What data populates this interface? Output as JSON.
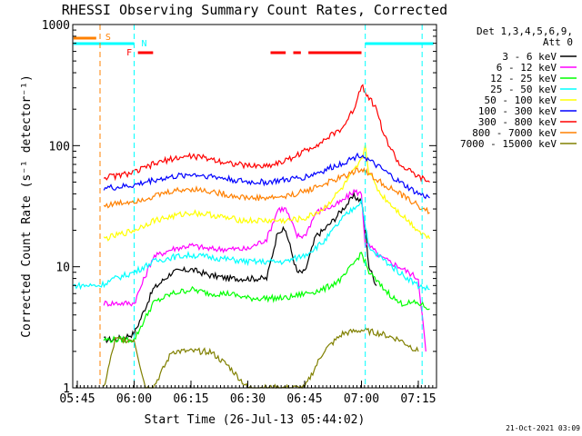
{
  "chart_data": {
    "type": "line",
    "title": "RHESSI Observing Summary Count Rates, Corrected",
    "xlabel": "Start Time (26-Jul-13 05:44:02)",
    "ylabel": "Corrected Count Rate (s⁻¹ detector⁻¹)",
    "yscale": "log",
    "ylim": [
      1,
      1000
    ],
    "xlim_minutes": [
      5.73,
      7.33
    ],
    "x_ticks": [
      "05:45",
      "06:00",
      "06:15",
      "06:30",
      "06:45",
      "07:00",
      "07:15"
    ],
    "y_ticks": [
      "1",
      "10",
      "100",
      "1000"
    ],
    "legend": {
      "header_1": "Det 1,3,4,5,6,9,",
      "header_2": "Att 0",
      "placement": "top-right outside"
    },
    "series": [
      {
        "name": "3 - 6 keV",
        "color": "#000000",
        "x": [
          "05:52",
          "05:55",
          "06:00",
          "06:05",
          "06:10",
          "06:15",
          "06:20",
          "06:25",
          "06:30",
          "06:35",
          "06:38",
          "06:40",
          "06:43",
          "06:45",
          "06:48",
          "06:50",
          "06:53",
          "06:55",
          "06:58",
          "07:00",
          "07:01",
          "07:02",
          "07:04"
        ],
        "values": [
          2.5,
          2.5,
          2.8,
          6.5,
          9,
          9.5,
          8.5,
          8,
          8,
          8,
          20,
          20,
          9,
          9,
          18,
          20,
          25,
          30,
          38,
          35,
          20,
          10,
          7
        ]
      },
      {
        "name": "6 - 12 keV",
        "color": "#ff00ff",
        "x": [
          "05:52",
          "05:55",
          "06:00",
          "06:05",
          "06:10",
          "06:15",
          "06:20",
          "06:25",
          "06:30",
          "06:35",
          "06:38",
          "06:40",
          "06:43",
          "06:45",
          "06:48",
          "06:50",
          "06:53",
          "06:55",
          "06:58",
          "07:00",
          "07:01",
          "07:02",
          "07:05",
          "07:10",
          "07:15",
          "07:17"
        ],
        "values": [
          5,
          5,
          5,
          12,
          14,
          15,
          14,
          14,
          14,
          17,
          30,
          30,
          18,
          18,
          28,
          30,
          32,
          35,
          42,
          40,
          15,
          15,
          12,
          10,
          8,
          2
        ]
      },
      {
        "name": "12 - 25 keV",
        "color": "#00ff00",
        "x": [
          "05:52",
          "05:55",
          "06:00",
          "06:05",
          "06:10",
          "06:15",
          "06:20",
          "06:25",
          "06:30",
          "06:35",
          "06:40",
          "06:45",
          "06:50",
          "06:55",
          "07:00",
          "07:02",
          "07:05",
          "07:10",
          "07:15",
          "07:18"
        ],
        "values": [
          2.5,
          2.5,
          2.5,
          5,
          6,
          6.5,
          6,
          6,
          5.5,
          5.5,
          5.5,
          6,
          6.5,
          8,
          13,
          9,
          7,
          5,
          5,
          4.5
        ]
      },
      {
        "name": "25 - 50 keV",
        "color": "#00ffff",
        "x": [
          "05:44",
          "05:51",
          "05:55",
          "06:00",
          "06:05",
          "06:10",
          "06:15",
          "06:20",
          "06:25",
          "06:30",
          "06:35",
          "06:40",
          "06:45",
          "06:50",
          "06:55",
          "07:00",
          "07:02",
          "07:05",
          "07:10",
          "07:15",
          "07:18"
        ],
        "values": [
          7,
          7,
          8,
          9,
          11,
          12,
          12.5,
          12,
          11.5,
          11,
          11,
          11,
          12.5,
          16,
          25,
          35,
          14,
          12,
          9,
          7,
          6.5
        ]
      },
      {
        "name": "50 - 100 keV",
        "color": "#ffff00",
        "x": [
          "05:52",
          "05:55",
          "06:00",
          "06:05",
          "06:10",
          "06:15",
          "06:20",
          "06:25",
          "06:30",
          "06:35",
          "06:40",
          "06:45",
          "06:50",
          "06:55",
          "07:00",
          "07:01",
          "07:02",
          "07:05",
          "07:10",
          "07:15",
          "07:18"
        ],
        "values": [
          17,
          18,
          20,
          24,
          26,
          28,
          27,
          25,
          24,
          24,
          24,
          25,
          30,
          45,
          75,
          100,
          60,
          40,
          28,
          20,
          17
        ]
      },
      {
        "name": "100 - 300 keV",
        "color": "#0000ff",
        "x": [
          "05:52",
          "05:55",
          "06:00",
          "06:05",
          "06:10",
          "06:15",
          "06:20",
          "06:25",
          "06:30",
          "06:35",
          "06:40",
          "06:45",
          "06:50",
          "06:55",
          "07:00",
          "07:02",
          "07:05",
          "07:10",
          "07:15",
          "07:18"
        ],
        "values": [
          45,
          45,
          47,
          52,
          55,
          58,
          56,
          53,
          50,
          50,
          52,
          55,
          62,
          72,
          85,
          75,
          65,
          50,
          40,
          37
        ]
      },
      {
        "name": "300 - 800 keV",
        "color": "#ff0000",
        "x": [
          "05:52",
          "05:55",
          "06:00",
          "06:05",
          "06:10",
          "06:15",
          "06:20",
          "06:25",
          "06:30",
          "06:35",
          "06:40",
          "06:45",
          "06:50",
          "06:55",
          "06:58",
          "07:00",
          "07:02",
          "07:04",
          "07:06",
          "07:10",
          "07:15",
          "07:18"
        ],
        "values": [
          55,
          56,
          60,
          70,
          78,
          82,
          78,
          72,
          68,
          68,
          75,
          90,
          110,
          140,
          200,
          320,
          250,
          200,
          120,
          70,
          55,
          50
        ]
      },
      {
        "name": "800 - 7000 keV",
        "color": "#ff8000",
        "x": [
          "05:52",
          "05:55",
          "06:00",
          "06:05",
          "06:10",
          "06:15",
          "06:20",
          "06:25",
          "06:30",
          "06:35",
          "06:40",
          "06:45",
          "06:50",
          "06:55",
          "07:00",
          "07:02",
          "07:05",
          "07:10",
          "07:15",
          "07:18"
        ],
        "values": [
          32,
          33,
          35,
          38,
          42,
          44,
          42,
          39,
          37,
          37,
          38,
          42,
          48,
          55,
          65,
          58,
          50,
          40,
          32,
          28
        ]
      },
      {
        "name": "7000 - 15000 keV",
        "color": "#808000",
        "x": [
          "05:52",
          "05:55",
          "06:00",
          "06:03",
          "06:05",
          "06:08",
          "06:10",
          "06:15",
          "06:20",
          "06:25",
          "06:30",
          "06:40",
          "06:45",
          "06:50",
          "06:55",
          "07:00",
          "07:05",
          "07:10",
          "07:15"
        ],
        "values": [
          1,
          2.5,
          2.5,
          1,
          1,
          1.5,
          2,
          2,
          2,
          1.5,
          1,
          1,
          1,
          2,
          2.8,
          3,
          2.8,
          2.5,
          2
        ]
      }
    ],
    "annotations": {
      "saa_flag": "S",
      "night_flag": "N",
      "flare_flag": "F"
    }
  },
  "timestamp": "21-Oct-2021 03:09"
}
